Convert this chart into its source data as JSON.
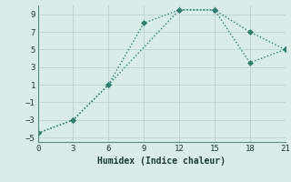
{
  "line1_x": [
    0,
    3,
    6,
    9,
    12,
    15,
    18,
    21
  ],
  "line1_y": [
    -4.5,
    -3,
    1,
    8,
    9.5,
    9.5,
    7,
    5
  ],
  "line2_x": [
    0,
    3,
    6,
    12,
    15,
    18,
    21
  ],
  "line2_y": [
    -4.5,
    -3,
    1,
    9.5,
    9.5,
    3.5,
    5
  ],
  "line_color": "#2e7d6e",
  "bg_color": "#d8ecea",
  "grid_color": "#b8d4d0",
  "xlabel": "Humidex (Indice chaleur)",
  "xlim": [
    0,
    21
  ],
  "ylim": [
    -5.5,
    10
  ],
  "xticks": [
    0,
    3,
    6,
    9,
    12,
    15,
    18,
    21
  ],
  "yticks": [
    -5,
    -3,
    -1,
    1,
    3,
    5,
    7,
    9
  ],
  "tick_fontsize": 6.5,
  "xlabel_fontsize": 7
}
